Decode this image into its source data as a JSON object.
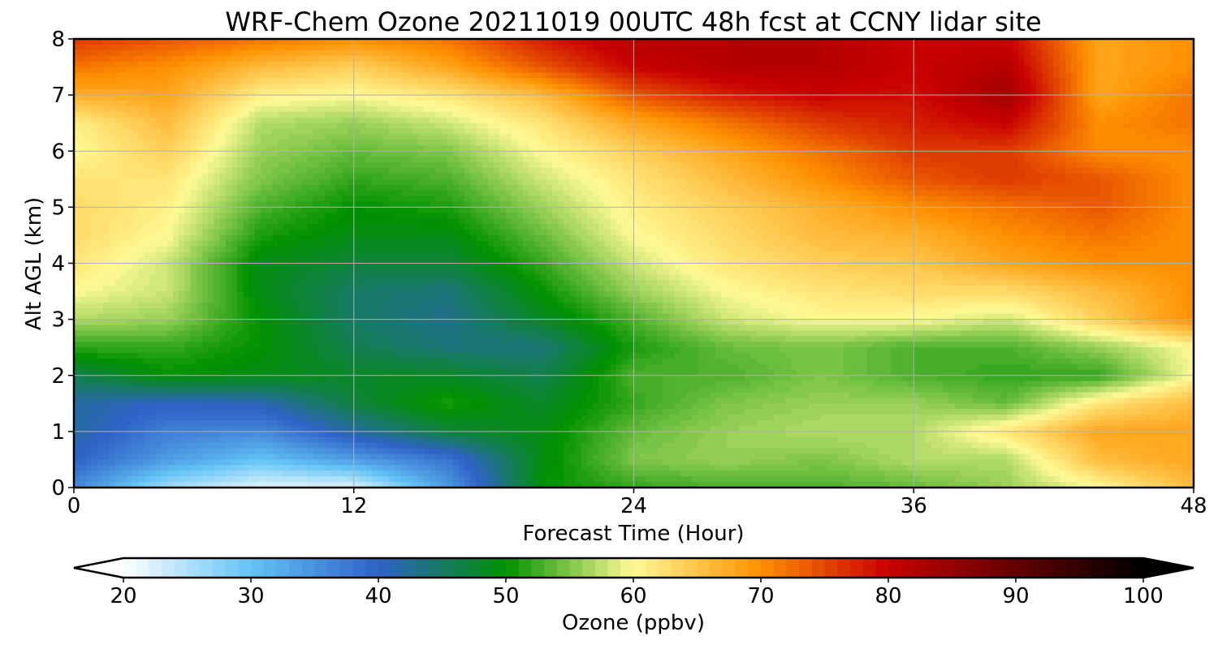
{
  "chart_data": {
    "type": "heatmap",
    "subtype": "filled-contour",
    "title": "WRF-Chem Ozone  20211019 00UTC 48h fcst at CCNY lidar site",
    "xlabel": "Forecast Time (Hour)",
    "ylabel": "Alt AGL (km)",
    "xlim": [
      0,
      48
    ],
    "ylim": [
      0,
      8
    ],
    "xticks": [
      0,
      12,
      24,
      36,
      48
    ],
    "yticks": [
      0,
      1,
      2,
      3,
      4,
      5,
      6,
      7,
      8
    ],
    "grid": true,
    "colorbar": {
      "label": "Ozone  (ppbv)",
      "orientation": "horizontal",
      "placement": "bottom",
      "range": [
        20,
        100
      ],
      "ticks": [
        20,
        30,
        40,
        50,
        60,
        70,
        80,
        90,
        100
      ],
      "extend": "both",
      "colormap": [
        {
          "v": 20,
          "c": "#ffffff"
        },
        {
          "v": 30,
          "c": "#63c3f5"
        },
        {
          "v": 40,
          "c": "#2f62c8"
        },
        {
          "v": 50,
          "c": "#009100"
        },
        {
          "v": 60,
          "c": "#fffa95"
        },
        {
          "v": 70,
          "c": "#ff9000"
        },
        {
          "v": 80,
          "c": "#c80000"
        },
        {
          "v": 90,
          "c": "#640000"
        },
        {
          "v": 100,
          "c": "#000000"
        }
      ]
    },
    "x_hours": [
      0,
      4,
      8,
      12,
      16,
      20,
      24,
      28,
      32,
      36,
      40,
      44,
      48
    ],
    "z_km": [
      0,
      0.5,
      1,
      1.5,
      2,
      2.5,
      3,
      3.5,
      4,
      4.5,
      5,
      5.5,
      6,
      6.5,
      7,
      7.5,
      8
    ],
    "ozone_ppbv": [
      [
        36,
        26,
        22,
        22,
        34,
        50,
        52,
        53,
        53,
        54,
        56,
        60,
        66
      ],
      [
        40,
        34,
        30,
        34,
        38,
        49,
        55,
        56,
        55,
        57,
        57,
        66,
        68
      ],
      [
        42,
        37,
        36,
        42,
        47,
        49,
        54,
        56,
        57,
        57,
        62,
        68,
        68
      ],
      [
        42,
        40,
        41,
        47,
        51,
        48,
        52,
        55,
        56,
        56,
        54,
        62,
        66
      ],
      [
        46,
        50,
        49,
        48,
        48,
        46,
        53,
        53,
        55,
        53,
        52,
        52,
        60
      ],
      [
        52,
        52,
        50,
        46,
        44,
        44,
        51,
        54,
        55,
        53,
        53,
        56,
        60
      ],
      [
        57,
        56,
        50,
        45,
        43,
        48,
        53,
        58,
        60,
        60,
        58,
        64,
        70
      ],
      [
        60,
        58,
        49,
        45,
        44,
        50,
        56,
        60,
        62,
        63,
        63,
        66,
        70
      ],
      [
        62,
        58,
        49,
        47,
        47,
        52,
        58,
        62,
        64,
        65,
        68,
        70,
        70
      ],
      [
        63,
        60,
        51,
        49,
        49,
        54,
        60,
        63,
        66,
        67,
        70,
        72,
        70
      ],
      [
        63,
        61,
        53,
        50,
        51,
        56,
        61,
        64,
        67,
        70,
        72,
        74,
        70
      ],
      [
        62,
        62,
        55,
        52,
        53,
        58,
        62,
        66,
        70,
        74,
        76,
        74,
        70
      ],
      [
        60,
        64,
        56,
        54,
        55,
        60,
        64,
        68,
        72,
        76,
        76,
        70,
        70
      ],
      [
        61,
        66,
        57,
        56,
        58,
        62,
        68,
        72,
        76,
        78,
        80,
        70,
        72
      ],
      [
        67,
        68,
        61,
        60,
        62,
        66,
        74,
        78,
        80,
        79,
        84,
        68,
        72
      ],
      [
        72,
        70,
        66,
        64,
        68,
        74,
        80,
        82,
        82,
        80,
        82,
        68,
        70
      ],
      [
        76,
        74,
        72,
        70,
        72,
        78,
        82,
        82,
        82,
        80,
        80,
        68,
        70
      ]
    ]
  }
}
